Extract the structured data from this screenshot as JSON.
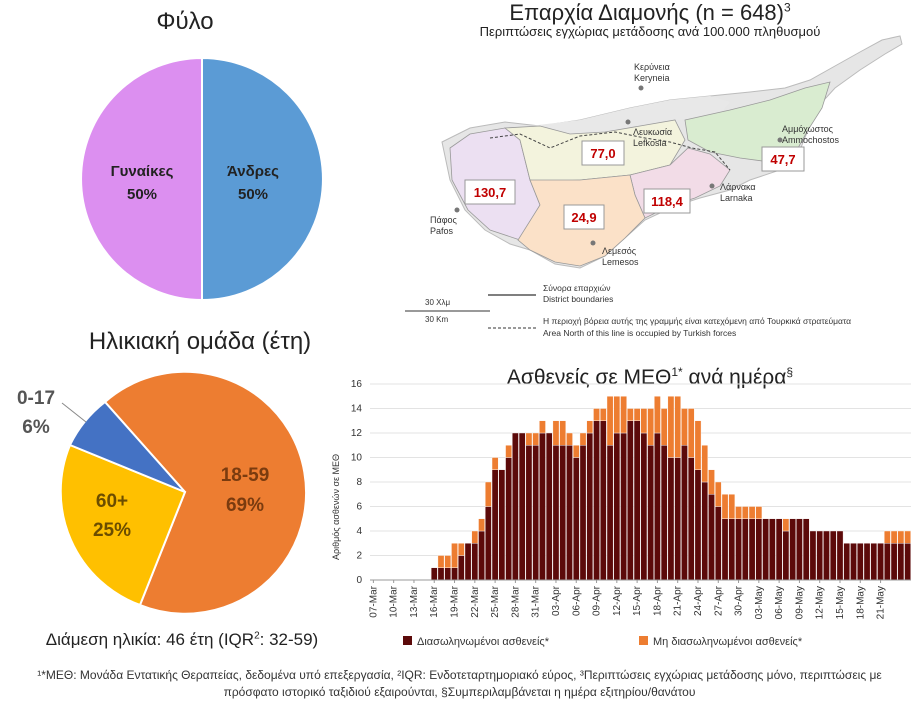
{
  "gender": {
    "title": "Φύλο",
    "chart_data": {
      "type": "pie",
      "slices": [
        {
          "label": "Άνδρες",
          "value": 50,
          "pct": "50%",
          "color": "#5b9bd5"
        },
        {
          "label": "Γυναίκες",
          "value": 50,
          "pct": "50%",
          "color": "#dc8ff0"
        }
      ]
    }
  },
  "age": {
    "title": "Ηλικιακή ομάδα (έτη)",
    "median": "Διάμεση ηλικία: 46 έτη (IQR",
    "median_sup": "2",
    "median_end": ": 32-59)",
    "chart_data": {
      "type": "pie",
      "slices": [
        {
          "label": "18-59",
          "value": 69,
          "pct": "69%",
          "color": "#ed7d31"
        },
        {
          "label": "60+",
          "value": 25,
          "pct": "25%",
          "color": "#ffc000"
        },
        {
          "label": "0-17",
          "value": 6,
          "pct": "6%",
          "color": "#4472c4"
        }
      ]
    }
  },
  "map": {
    "title": "Επαρχία Διαμονής (n = 648)",
    "title_sup": "3",
    "subtitle": "Περιπτώσεις εγχώριας μετάδοσης ανά 100.000 πληθυσμού",
    "districts": [
      {
        "gr": "Κερύνεια",
        "en": "Keryneia"
      },
      {
        "gr": "Λευκωσία",
        "en": "Lefkosia",
        "rate": "77,0"
      },
      {
        "gr": "Αμμόχωστος",
        "en": "Ammochostos",
        "rate": "47,7"
      },
      {
        "gr": "Λάρνακα",
        "en": "Larnaka",
        "rate": "118,4"
      },
      {
        "gr": "Λεμεσός",
        "en": "Lemesos",
        "rate": "24,9"
      },
      {
        "gr": "Πάφος",
        "en": "Pafos",
        "rate": "130,7"
      }
    ],
    "scale_gr": "30 Χλμ",
    "scale_en": "30 Km",
    "legend_boundary_gr": "Σύνορα επαρχιών",
    "legend_boundary_en": "District boundaries",
    "legend_line_gr": "Η περιοχή βόρεια αυτής της γραμμής είναι κατεχόμενη από Τουρκικά στρατεύματα",
    "legend_line_en": "Area North of this line is occupied by Turkish forces"
  },
  "icu": {
    "title": "Ασθενείς σε ΜΕΘ",
    "title_sup": "1*",
    "title_end": " ανά ημέρα",
    "title_sup2": "§",
    "chart_data": {
      "type": "bar",
      "stacked": true,
      "ylabel": "Αριθμός ασθενών σε ΜΕΘ",
      "ylim": [
        0,
        16
      ],
      "yticks": [
        0,
        2,
        4,
        6,
        8,
        10,
        12,
        14,
        16
      ],
      "start_date": "07-Mar",
      "xtick_labels": [
        "07-Mar",
        "10-Mar",
        "13-Mar",
        "16-Mar",
        "19-Mar",
        "22-Mar",
        "25-Mar",
        "28-Mar",
        "31-Mar",
        "03-Apr",
        "06-Apr",
        "09-Apr",
        "12-Apr",
        "15-Apr",
        "18-Apr",
        "21-Apr",
        "24-Apr",
        "27-Apr",
        "30-Apr",
        "03-May",
        "06-May",
        "09-May",
        "12-May",
        "15-May",
        "18-May",
        "21-May"
      ],
      "series": [
        {
          "name": "Διασωληνωμένοι ασθενείς*",
          "color": "#5c0a0a",
          "values": [
            0,
            0,
            0,
            0,
            0,
            0,
            0,
            0,
            0,
            1,
            1,
            1,
            1,
            2,
            3,
            3,
            4,
            6,
            9,
            9,
            10,
            12,
            12,
            11,
            11,
            12,
            12,
            11,
            11,
            11,
            10,
            11,
            12,
            13,
            13,
            11,
            12,
            12,
            13,
            13,
            12,
            11,
            12,
            11,
            10,
            10,
            11,
            10,
            9,
            8,
            7,
            6,
            5,
            5,
            5,
            5,
            5,
            5,
            5,
            5,
            5,
            4,
            5,
            5,
            5,
            4,
            4,
            4,
            4,
            4,
            3,
            3,
            3,
            3,
            3,
            3,
            3,
            3,
            3,
            3
          ]
        },
        {
          "name": "Μη διασωληνωμένοι ασθενείς*",
          "color": "#ed7d31",
          "values": [
            0,
            0,
            0,
            0,
            0,
            0,
            0,
            0,
            0,
            0,
            1,
            1,
            2,
            1,
            0,
            1,
            1,
            2,
            1,
            0,
            1,
            0,
            0,
            1,
            1,
            1,
            0,
            2,
            2,
            1,
            1,
            1,
            1,
            1,
            1,
            4,
            3,
            3,
            1,
            1,
            2,
            3,
            3,
            3,
            5,
            5,
            3,
            4,
            4,
            3,
            2,
            2,
            2,
            2,
            1,
            1,
            1,
            1,
            0,
            0,
            0,
            1,
            0,
            0,
            0,
            0,
            0,
            0,
            0,
            0,
            0,
            0,
            0,
            0,
            0,
            0,
            1,
            1,
            1,
            1
          ]
        }
      ]
    }
  },
  "footnote_line1": "¹*ΜΕΘ: Μονάδα Εντατικής Θεραπείας, δεδομένα υπό επεξεργασία, ²IQR: Ενδοτεταρτημοριακό εύρος, ³Περιπτώσεις εγχώριας μετάδοσης μόνο, περιπτώσεις με",
  "footnote_line2": "πρόσφατο ιστορικό ταξιδιού εξαιρούνται, §Συμπεριλαμβάνεται η ημέρα εξιτηρίου/θανάτου"
}
